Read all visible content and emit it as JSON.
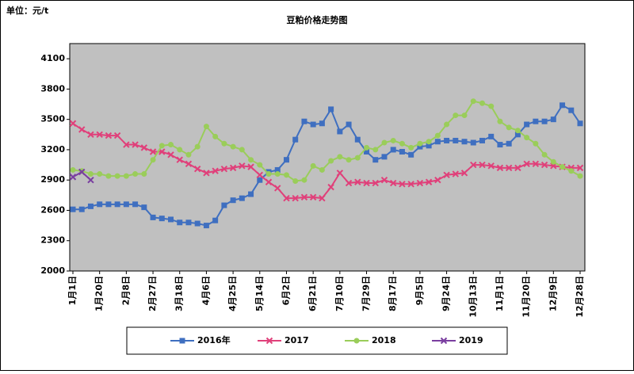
{
  "chart_data": {
    "type": "line",
    "title": "豆粕价格走势图",
    "unit_label": "单位：元/t",
    "categories": [
      "1月1日",
      null,
      null,
      "1月20日",
      null,
      null,
      "2月8日",
      null,
      null,
      "2月27日",
      null,
      null,
      "3月18日",
      null,
      null,
      "4月6日",
      null,
      null,
      "4月25日",
      null,
      null,
      "5月14日",
      null,
      null,
      "6月2日",
      null,
      null,
      "6月21日",
      null,
      null,
      "7月10日",
      null,
      null,
      "7月29日",
      null,
      null,
      "8月17日",
      null,
      null,
      "9月5日",
      null,
      null,
      "9月24日",
      null,
      null,
      "10月13日",
      null,
      null,
      "11月1日",
      null,
      null,
      "11月20日",
      null,
      null,
      "12月9日",
      null,
      null,
      "12月28日"
    ],
    "series": [
      {
        "name": "2016年",
        "color": "#3f6fc0",
        "marker": "square",
        "values": [
          2610,
          2610,
          2640,
          2660,
          2660,
          2660,
          2660,
          2660,
          2630,
          2530,
          2520,
          2510,
          2480,
          2480,
          2470,
          2450,
          2500,
          2650,
          2700,
          2720,
          2760,
          2900,
          2980,
          3000,
          3100,
          3300,
          3480,
          3450,
          3460,
          3600,
          3380,
          3450,
          3300,
          3180,
          3100,
          3130,
          3200,
          3180,
          3150,
          3230,
          3240,
          3280,
          3290,
          3290,
          3280,
          3270,
          3290,
          3330,
          3250,
          3260,
          3350,
          3450,
          3480,
          3480,
          3500,
          3640,
          3590,
          3460
        ]
      },
      {
        "name": "2017",
        "color": "#e0407a",
        "marker": "x",
        "values": [
          3460,
          3400,
          3350,
          3350,
          3340,
          3340,
          3250,
          3250,
          3220,
          3180,
          3180,
          3150,
          3100,
          3060,
          3010,
          2970,
          2990,
          3010,
          3020,
          3040,
          3030,
          2950,
          2880,
          2820,
          2720,
          2720,
          2730,
          2730,
          2720,
          2830,
          2970,
          2870,
          2880,
          2870,
          2870,
          2900,
          2870,
          2860,
          2860,
          2870,
          2880,
          2900,
          2950,
          2960,
          2970,
          3050,
          3050,
          3040,
          3020,
          3020,
          3020,
          3060,
          3060,
          3050,
          3040,
          3030,
          3020,
          3020
        ]
      },
      {
        "name": "2018",
        "color": "#9acd5a",
        "marker": "circle",
        "values": [
          3000,
          2990,
          2960,
          2960,
          2940,
          2940,
          2940,
          2960,
          2960,
          3100,
          3240,
          3250,
          3200,
          3150,
          3230,
          3430,
          3330,
          3260,
          3230,
          3200,
          3100,
          3050,
          2960,
          2960,
          2950,
          2890,
          2900,
          3040,
          3000,
          3090,
          3130,
          3100,
          3120,
          3220,
          3200,
          3270,
          3290,
          3260,
          3220,
          3260,
          3280,
          3340,
          3450,
          3540,
          3540,
          3680,
          3660,
          3630,
          3480,
          3420,
          3390,
          3320,
          3260,
          3150,
          3080,
          3030,
          2990,
          2940
        ]
      },
      {
        "name": "2019",
        "color": "#7a3fa0",
        "marker": "x",
        "values": [
          2930,
          2980,
          2900,
          null,
          null,
          null,
          null,
          null,
          null,
          null,
          null,
          null,
          null,
          null,
          null,
          null,
          null,
          null,
          null,
          null,
          null,
          null,
          null,
          null,
          null,
          null,
          null,
          null,
          null,
          null,
          null,
          null,
          null,
          null,
          null,
          null,
          null,
          null,
          null,
          null,
          null,
          null,
          null,
          null,
          null,
          null,
          null,
          null,
          null,
          null,
          null,
          null,
          null,
          null,
          null,
          null,
          null,
          null
        ]
      }
    ],
    "ylim": [
      2000,
      4250
    ],
    "yticks": [
      2000,
      2300,
      2600,
      2900,
      3200,
      3500,
      3800,
      4100
    ],
    "plot_bg": "#c0c0c0"
  }
}
